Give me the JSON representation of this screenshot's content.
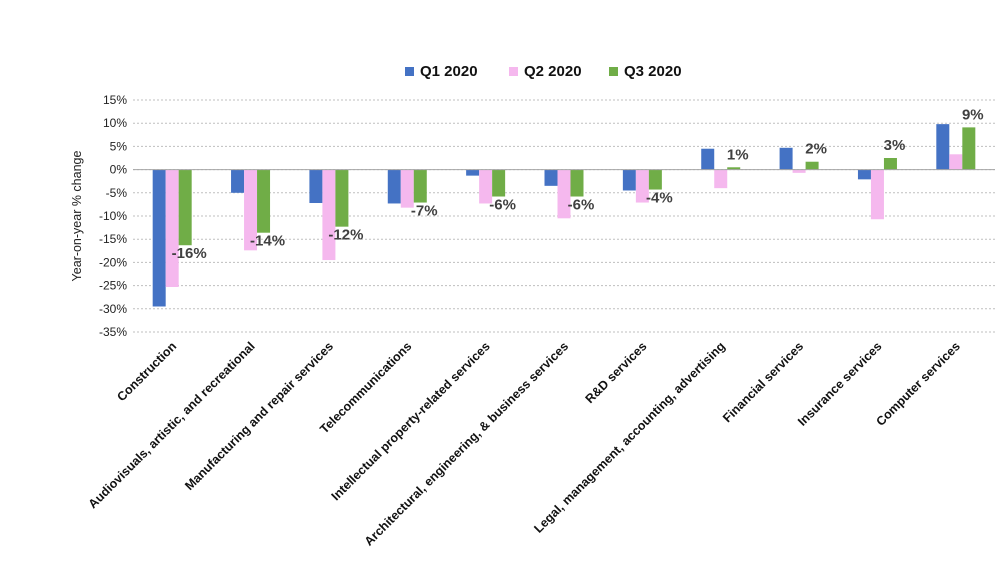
{
  "chart_data": {
    "type": "bar",
    "title": "",
    "xlabel": "",
    "ylabel": "Year-on-year % change",
    "ylim": [
      -35,
      15
    ],
    "ytick_step": 5,
    "yticks": [
      "15%",
      "10%",
      "5%",
      "0%",
      "-5%",
      "-10%",
      "-15%",
      "-20%",
      "-25%",
      "-30%",
      "-35%"
    ],
    "grid": true,
    "legend_position": "top-center",
    "categories": [
      "Construction",
      "Audiovisuals, artistic, and recreational",
      "Manufacturing and repair services",
      "Telecommunications",
      "Intellectual property-related services",
      "Architectural, engineering, & business services",
      "R&D services",
      "Legal, management, accounting, advertising",
      "Financial services",
      "Insurance services",
      "Computer services"
    ],
    "series": [
      {
        "name": "Q1 2020",
        "color": "#4472C4",
        "values": [
          -29.5,
          -5,
          -7.2,
          -7.3,
          -1.3,
          -3.5,
          -4.5,
          4.5,
          4.7,
          -2.1,
          9.8
        ]
      },
      {
        "name": "Q2 2020",
        "color": "#F5B8EE",
        "values": [
          -25.3,
          -17.4,
          -19.5,
          -8.2,
          -7.3,
          -10.5,
          -7.1,
          -4,
          -0.7,
          -10.7,
          3.3
        ]
      },
      {
        "name": "Q3 2020",
        "color": "#70AD47",
        "values": [
          -16.3,
          -13.6,
          -12.3,
          -7.1,
          -5.8,
          -5.8,
          -4.3,
          0.5,
          1.7,
          2.5,
          9.1
        ]
      }
    ],
    "data_labels": [
      "-16%",
      "-14%",
      "-12%",
      "-7%",
      "-6%",
      "-6%",
      "-4%",
      "1%",
      "2%",
      "3%",
      "9%"
    ]
  }
}
